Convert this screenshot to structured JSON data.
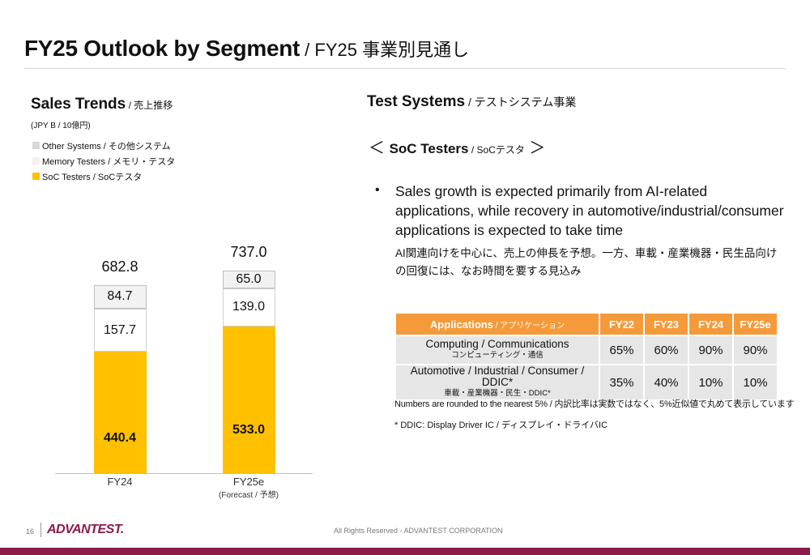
{
  "slide": {
    "title_main": "FY25 Outlook by Segment",
    "title_sub": " / FY25 事業別見通し",
    "page_number": "16",
    "logo_text": "ADVANTEST.",
    "copyright": "All Rights Reserved - ADVANTEST CORPORATION"
  },
  "left": {
    "heading": "Sales Trends",
    "heading_sub": " / 売上推移",
    "unit": "(JPY B / 10億円)",
    "legend": [
      {
        "label": "Other Systems / その他システム",
        "color": "#d9d9d9"
      },
      {
        "label": "Memory Testers / メモリ・テスタ",
        "color": "#f2f2f2"
      },
      {
        "label": "SoC Testers / SoCテスタ",
        "color": "#ffc000"
      }
    ]
  },
  "chart_data": {
    "type": "bar",
    "stacked": true,
    "categories": [
      "FY24",
      "FY25e"
    ],
    "category_sublabels": [
      "",
      "(Forecast / 予想)"
    ],
    "series": [
      {
        "name": "SoC Testers / SoCテスタ",
        "values": [
          440.4,
          533.0
        ],
        "color": "#ffc000"
      },
      {
        "name": "Memory Testers / メモリ・テスタ",
        "values": [
          157.7,
          139.0
        ],
        "color": "#ffffff"
      },
      {
        "name": "Other Systems / その他システム",
        "values": [
          84.7,
          65.0
        ],
        "color": "#f2f2f2"
      }
    ],
    "totals": [
      "682.8",
      "737.0"
    ],
    "value_labels": [
      [
        "440.4",
        "157.7",
        "84.7"
      ],
      [
        "533.0",
        "139.0",
        "65.0"
      ]
    ],
    "unit": "JPY B",
    "legend": "top-left"
  },
  "right": {
    "heading": "Test Systems",
    "heading_sub": " / テストシステム事業",
    "subheading_open": "＜ ",
    "subheading": "SoC Testers",
    "subheading_sub": " / SoCテスタ",
    "subheading_close": " ＞",
    "bullet_marker": "•",
    "bullet_en": "Sales growth is expected primarily from AI-related applications, while recovery in automotive/industrial/consumer applications is expected to take time",
    "bullet_ja": "AI関連向けを中心に、売上の伸長を予想。一方、車載・産業機器・民生品向けの回復には、なお時間を要する見込み",
    "table": {
      "header_app": "Applications",
      "header_app_sub": " / アプリケーション",
      "years": [
        "FY22",
        "FY23",
        "FY24",
        "FY25e"
      ],
      "rows": [
        {
          "en": "Computing / Communications",
          "ja": "コンピューティング・通信",
          "values": [
            "65%",
            "60%",
            "90%",
            "90%"
          ]
        },
        {
          "en": "Automotive / Industrial / Consumer / DDIC*",
          "ja": "車載・産業機器・民生・DDIC*",
          "values": [
            "35%",
            "40%",
            "10%",
            "10%"
          ]
        }
      ]
    },
    "note_rounding": "Numbers are rounded to the nearest 5% / 内訳比率は実数ではなく、5%近似値で丸めて表示しています",
    "note_ddic": "* DDIC: Display Driver IC / ディスプレイ・ドライバIC"
  }
}
